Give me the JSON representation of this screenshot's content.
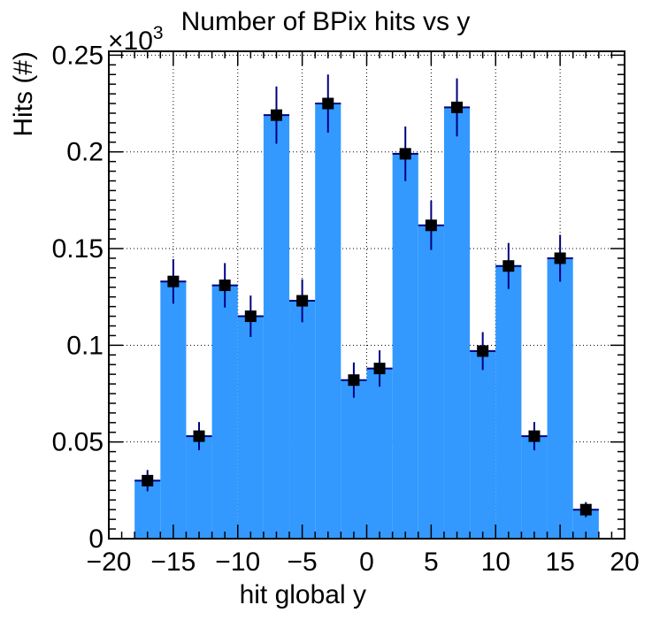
{
  "chart_data": {
    "type": "bar",
    "title": "Number of BPix hits vs y",
    "xlabel": "hit global y",
    "ylabel": "Hits (#)",
    "y_multiplier_label": "×10",
    "y_multiplier_exponent": "3",
    "xlim": [
      -20,
      20
    ],
    "ylim": [
      0,
      0.252
    ],
    "grid": true,
    "x_ticks": [
      -20,
      -15,
      -10,
      -5,
      0,
      5,
      10,
      15,
      20
    ],
    "x_tick_labels": [
      "−20",
      "−15",
      "−10",
      "−5",
      "0",
      "5",
      "10",
      "15",
      "20"
    ],
    "y_ticks": [
      0,
      0.05,
      0.1,
      0.15,
      0.2,
      0.25
    ],
    "y_tick_labels": [
      "0",
      "0.05",
      "0.1",
      "0.15",
      "0.2",
      "0.25"
    ],
    "bin_edges": [
      -18,
      -16,
      -14,
      -12,
      -10,
      -8,
      -6,
      -4,
      -2,
      0,
      2,
      4,
      6,
      8,
      10,
      12,
      14,
      16,
      18
    ],
    "bin_centers": [
      -17,
      -15,
      -13,
      -11,
      -9,
      -7,
      -5,
      -3,
      -1,
      1,
      3,
      5,
      7,
      9,
      11,
      13,
      15,
      17
    ],
    "values": [
      0.03,
      0.133,
      0.053,
      0.131,
      0.115,
      0.219,
      0.123,
      0.225,
      0.082,
      0.088,
      0.199,
      0.162,
      0.223,
      0.097,
      0.141,
      0.053,
      0.145,
      0.015
    ],
    "errors": [
      0.0055,
      0.0115,
      0.0073,
      0.0115,
      0.0107,
      0.0148,
      0.0111,
      0.015,
      0.0091,
      0.0094,
      0.0141,
      0.0127,
      0.015,
      0.0098,
      0.0119,
      0.0073,
      0.0121,
      0.0039
    ],
    "fill_color": "#3399ff",
    "marker_color": "#000000",
    "error_color": "#000080"
  }
}
